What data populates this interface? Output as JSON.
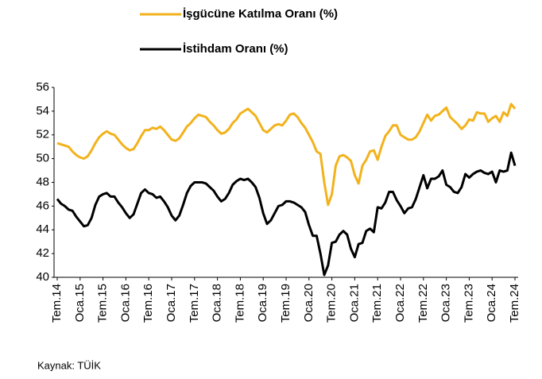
{
  "chart_data": {
    "type": "line",
    "categories": [
      "Tem.14",
      null,
      null,
      null,
      null,
      null,
      "Oca.15",
      null,
      null,
      null,
      null,
      null,
      "Tem.15",
      null,
      null,
      null,
      null,
      null,
      "Oca.16",
      null,
      null,
      null,
      null,
      null,
      "Tem.16",
      null,
      null,
      null,
      null,
      null,
      "Oca.17",
      null,
      null,
      null,
      null,
      null,
      "Tem.17",
      null,
      null,
      null,
      null,
      null,
      "Oca.18",
      null,
      null,
      null,
      null,
      null,
      "Tem.18",
      null,
      null,
      null,
      null,
      null,
      "Oca.19",
      null,
      null,
      null,
      null,
      null,
      "Tem.19",
      null,
      null,
      null,
      null,
      null,
      "Oca.20",
      null,
      null,
      null,
      null,
      null,
      "Tem.20",
      null,
      null,
      null,
      null,
      null,
      "Oca.21",
      null,
      null,
      null,
      null,
      null,
      "Tem.21",
      null,
      null,
      null,
      null,
      null,
      "Oca.22",
      null,
      null,
      null,
      null,
      null,
      "Tem.22",
      null,
      null,
      null,
      null,
      null,
      "Oca.23",
      null,
      null,
      null,
      null,
      null,
      "Tem.23",
      null,
      null,
      null,
      null,
      null,
      "Oca.24",
      null,
      null,
      null,
      null,
      null,
      "Tem.24"
    ],
    "series": [
      {
        "name": "İşgücüne Katılma Oranı (%)",
        "color": "#f2b21c",
        "values": [
          51.3,
          51.2,
          51.1,
          51.0,
          50.6,
          50.3,
          50.1,
          50.0,
          50.2,
          50.7,
          51.3,
          51.8,
          52.1,
          52.3,
          52.1,
          52.0,
          51.6,
          51.2,
          50.9,
          50.7,
          50.8,
          51.3,
          51.9,
          52.4,
          52.4,
          52.6,
          52.5,
          52.7,
          52.4,
          52.0,
          51.6,
          51.5,
          51.7,
          52.2,
          52.7,
          53.0,
          53.4,
          53.7,
          53.6,
          53.5,
          53.1,
          52.8,
          52.4,
          52.1,
          52.2,
          52.5,
          53.0,
          53.3,
          53.8,
          54.0,
          54.2,
          53.9,
          53.6,
          53.0,
          52.4,
          52.2,
          52.5,
          52.8,
          52.9,
          52.8,
          53.2,
          53.7,
          53.8,
          53.5,
          53.0,
          52.6,
          52.0,
          51.4,
          50.6,
          50.4,
          48.0,
          46.1,
          47.0,
          49.4,
          50.2,
          50.3,
          50.1,
          49.8,
          48.6,
          47.9,
          49.4,
          49.9,
          50.6,
          50.7,
          49.9,
          51.0,
          51.9,
          52.3,
          52.8,
          52.8,
          52.0,
          51.8,
          51.6,
          51.6,
          51.8,
          52.3,
          53.0,
          53.7,
          53.2,
          53.6,
          53.7,
          54.0,
          54.3,
          53.5,
          53.2,
          52.9,
          52.5,
          52.8,
          53.3,
          53.2,
          53.9,
          53.8,
          53.8,
          53.1,
          53.4,
          53.6,
          53.1,
          53.9,
          53.6,
          54.6,
          54.2
        ]
      },
      {
        "name": "İstihdam Oranı (%)",
        "color": "#000000",
        "values": [
          46.6,
          46.2,
          46.0,
          45.7,
          45.6,
          45.1,
          44.7,
          44.3,
          44.4,
          45.0,
          46.1,
          46.8,
          47.0,
          47.1,
          46.8,
          46.8,
          46.3,
          45.9,
          45.4,
          45.0,
          45.3,
          46.2,
          47.1,
          47.4,
          47.1,
          47.0,
          46.7,
          46.8,
          46.4,
          45.9,
          45.2,
          44.8,
          45.2,
          46.1,
          47.1,
          47.7,
          48.0,
          48.0,
          48.0,
          47.9,
          47.6,
          47.3,
          46.8,
          46.4,
          46.6,
          47.1,
          47.8,
          48.1,
          48.3,
          48.2,
          48.3,
          48.0,
          47.6,
          46.7,
          45.4,
          44.5,
          44.8,
          45.4,
          46.0,
          46.1,
          46.4,
          46.4,
          46.3,
          46.1,
          45.9,
          45.5,
          44.4,
          43.5,
          43.5,
          42.0,
          40.2,
          41.0,
          42.9,
          43.0,
          43.6,
          43.9,
          43.6,
          42.4,
          41.7,
          42.8,
          42.9,
          43.9,
          44.1,
          43.8,
          45.9,
          45.8,
          46.3,
          47.2,
          47.2,
          46.5,
          46.0,
          45.4,
          45.8,
          45.9,
          46.6,
          47.6,
          48.6,
          47.5,
          48.3,
          48.3,
          48.5,
          49.0,
          47.8,
          47.6,
          47.2,
          47.1,
          47.6,
          48.7,
          48.4,
          48.7,
          48.9,
          49.0,
          48.8,
          48.7,
          48.9,
          48.0,
          49.0,
          48.9,
          49.0,
          50.5,
          49.4
        ]
      }
    ],
    "ylim": [
      40,
      56
    ],
    "yticks": [
      40,
      42,
      44,
      46,
      48,
      50,
      52,
      54,
      56
    ],
    "grid": false,
    "legend": "top",
    "source": "Kaynak: TÜİK"
  }
}
